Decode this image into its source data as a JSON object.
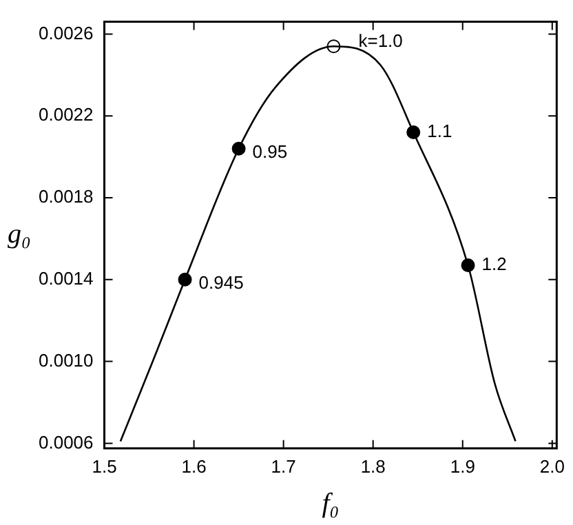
{
  "chart_data": {
    "type": "line",
    "xlabel": "f₀",
    "ylabel": "g₀",
    "xlim": [
      1.5,
      2.005
    ],
    "ylim": [
      0.000575,
      0.00266
    ],
    "xticks": [
      1.5,
      1.6,
      1.7,
      1.8,
      1.9,
      {
        "value": 2,
        "label": "2.0"
      }
    ],
    "yticks": [
      0.0006,
      {
        "value": 0.001,
        "label": "0.0010"
      },
      0.0014,
      0.0018,
      0.0022,
      0.0026
    ],
    "grid": false,
    "legend": false,
    "series": [
      {
        "color": "#000000",
        "marker": "none",
        "line_style": "solid",
        "x": [
          1.518,
          1.554,
          1.59,
          1.65,
          1.691,
          1.756,
          1.808,
          1.845,
          1.906,
          1.936,
          1.959
        ],
        "values": [
          0.00061,
          0.001,
          0.0014,
          0.00204,
          0.00234,
          0.00254,
          0.00245,
          0.00212,
          0.00147,
          0.00089,
          0.00061
        ]
      },
      {
        "type": "scatter",
        "color": "#000000",
        "colors": [
          "#000000",
          "#000000",
          "#ffffff",
          "#000000",
          "#000000"
        ],
        "marker": "circle",
        "x": [
          1.59,
          1.65,
          1.756,
          1.845,
          1.906
        ],
        "values": [
          0.0014,
          0.00204,
          0.00254,
          0.00212,
          0.00147
        ]
      }
    ],
    "annotations": [
      {
        "text": "0.945",
        "x": 1.59,
        "y": 0.0014
      },
      {
        "text": "0.95",
        "x": 1.65,
        "y": 0.00204
      },
      {
        "text": "k=1.0",
        "x": 1.756,
        "y": 0.00254
      },
      {
        "text": "1.1",
        "x": 1.845,
        "y": 0.00212
      },
      {
        "text": "1.2",
        "x": 1.906,
        "y": 0.00147
      }
    ]
  }
}
